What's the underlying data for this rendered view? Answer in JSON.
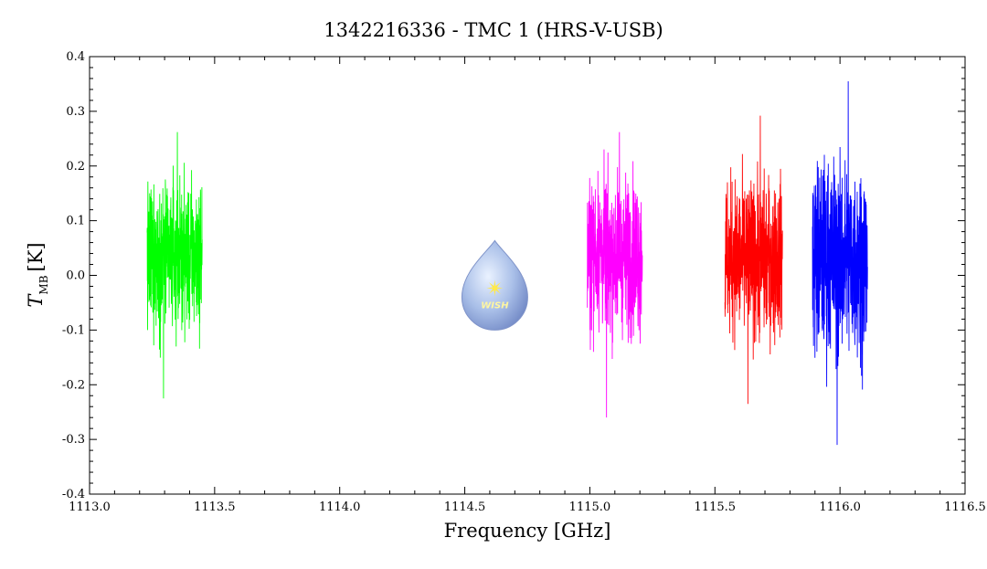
{
  "chart_data": {
    "type": "line",
    "title": "1342216336 - TMC 1 (HRS-V-USB)",
    "xlabel": "Frequency [GHz]",
    "ylabel_main": "T",
    "ylabel_sub": "MB",
    "ylabel_unit": "[K]",
    "xlim": [
      1113.0,
      1116.5
    ],
    "ylim": [
      -0.4,
      0.4
    ],
    "x_ticks": [
      "1113.0",
      "1113.5",
      "1114.0",
      "1114.5",
      "1115.0",
      "1115.5",
      "1116.0",
      "1116.5"
    ],
    "y_ticks": [
      "0.4",
      "0.3",
      "0.2",
      "0.1",
      "0.0",
      "-0.1",
      "-0.2",
      "-0.3",
      "-0.4"
    ],
    "grid": false,
    "series": [
      {
        "color": "#00ff00",
        "x_range": [
          1113.23,
          1113.45
        ],
        "center": 0.035,
        "min": -0.225,
        "max": 0.262
      },
      {
        "color": "#ff00ff",
        "x_range": [
          1114.99,
          1115.21
        ],
        "center": 0.04,
        "min": -0.26,
        "max": 0.262
      },
      {
        "color": "#ff0000",
        "x_range": [
          1115.54,
          1115.77
        ],
        "center": 0.03,
        "min": -0.235,
        "max": 0.292
      },
      {
        "color": "#0000ff",
        "x_range": [
          1115.89,
          1116.11
        ],
        "center": 0.03,
        "min": -0.31,
        "max": 0.355
      }
    ],
    "logo": {
      "text": "WISH",
      "x": 1114.62
    }
  }
}
